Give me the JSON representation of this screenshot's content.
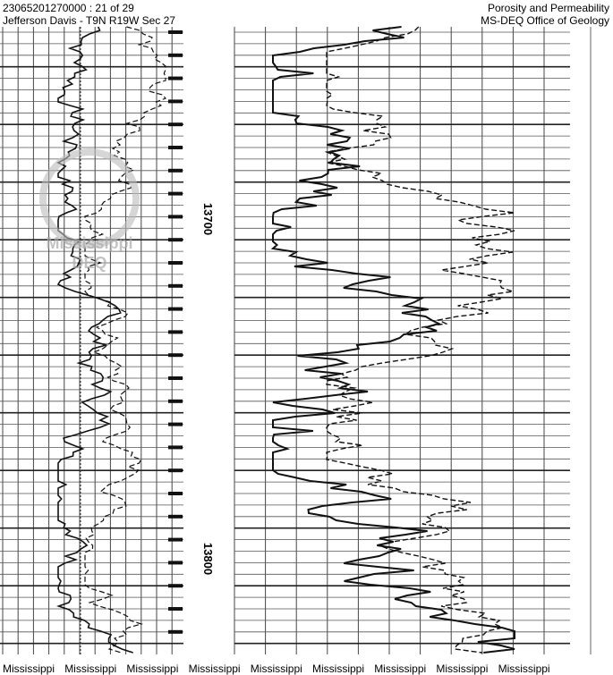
{
  "header": {
    "well_id": "23065201270000 : 21 of 29",
    "location": "Jefferson Davis - T9N R19W Sec 27",
    "log_type": "Porosity and Permeability",
    "agency": "MS-DEQ Office of Geology"
  },
  "depth_labels": [
    "13700",
    "13800"
  ],
  "watermark": {
    "line1": "Mississippi",
    "line2": "DEQ"
  },
  "footer": {
    "labels": [
      "Mississippi",
      "Mississippi",
      "Mississippi",
      "Mississippi",
      "Mississippi",
      "Mississippi",
      "Mississippi",
      "Mississippi",
      "Mississippi"
    ]
  }
}
